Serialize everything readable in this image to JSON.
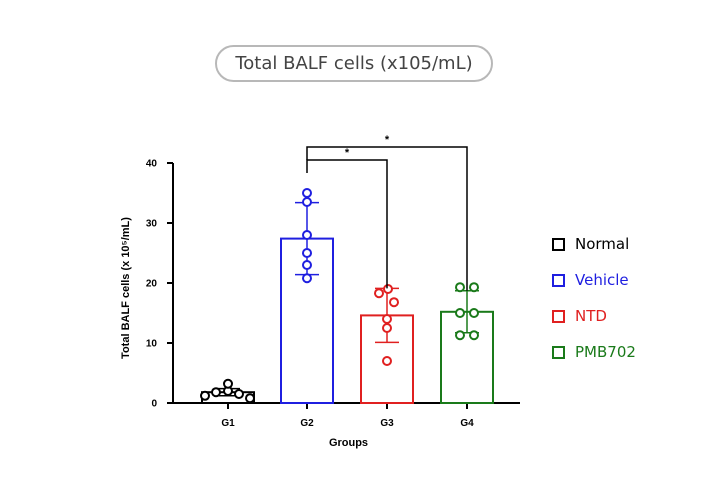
{
  "page_title": "Total BALF cells (x105/mL)",
  "chart_data": {
    "type": "bar",
    "ylabel": "Total BALF cells  (x 10⁵/mL)",
    "xlabel": "Groups",
    "ylim": [
      0,
      40
    ],
    "yticks": [
      "0",
      "10",
      "20",
      "30",
      "40"
    ],
    "categories": [
      "G1",
      "G2",
      "G3",
      "G4"
    ],
    "values": [
      1.8,
      27.4,
      14.6,
      15.2
    ],
    "sd": [
      0.6,
      6.0,
      4.5,
      3.5
    ],
    "colors": [
      "#000000",
      "#1f1fe0",
      "#e02020",
      "#1a7a1a"
    ],
    "points": [
      [
        1.2,
        1.8,
        2.0,
        3.2,
        1.5,
        0.8
      ],
      [
        35.0,
        33.5,
        28.0,
        25.0,
        23.0,
        20.8
      ],
      [
        19.0,
        18.3,
        16.8,
        14.0,
        12.5,
        7.0
      ],
      [
        19.3,
        19.3,
        15.0,
        15.0,
        11.3,
        11.3
      ]
    ],
    "significance": [
      {
        "from": "G2",
        "to": "G3",
        "label": "*"
      },
      {
        "from": "G2",
        "to": "G4",
        "label": "*"
      }
    ],
    "grid": false,
    "legend_position": "right"
  },
  "legend": [
    {
      "label": "Normal",
      "color": "#000000"
    },
    {
      "label": "Vehicle",
      "color": "#1f1fe0"
    },
    {
      "label": "NTD",
      "color": "#e02020"
    },
    {
      "label": "PMB702",
      "color": "#1a7a1a"
    }
  ]
}
